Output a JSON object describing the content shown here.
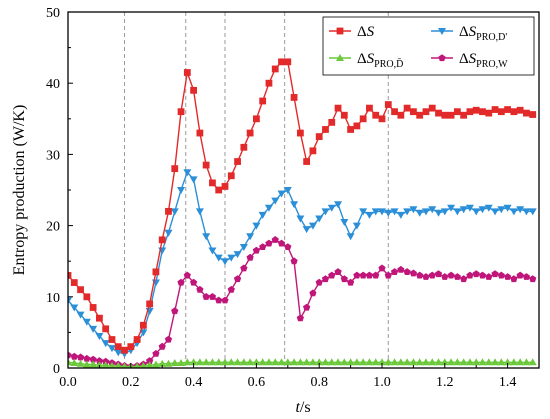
{
  "chart_data": {
    "type": "line",
    "xlabel_italic": "t",
    "xlabel_unit": "/s",
    "ylabel": "Entropy production (W/K)",
    "xlim": [
      0.0,
      1.5
    ],
    "ylim": [
      0,
      50
    ],
    "x_ticks": [
      "0.0",
      "0.2",
      "0.4",
      "0.6",
      "0.8",
      "1.0",
      "1.2",
      "1.4"
    ],
    "x_tick_values": [
      0.0,
      0.2,
      0.4,
      0.6,
      0.8,
      1.0,
      1.2,
      1.4
    ],
    "y_ticks": [
      "0",
      "10",
      "20",
      "30",
      "40",
      "50"
    ],
    "y_tick_values": [
      0,
      10,
      20,
      30,
      40,
      50
    ],
    "vertical_reference_lines_x": [
      0.18,
      0.375,
      0.5,
      0.69,
      1.02
    ],
    "legend_position": "top-right",
    "series": [
      {
        "name": "ΔS",
        "legend_main": "Δ",
        "legend_italic": "S",
        "legend_sub": "",
        "color": "#e32a2a",
        "marker": "square",
        "x": [
          0.0,
          0.02,
          0.04,
          0.06,
          0.08,
          0.1,
          0.12,
          0.14,
          0.16,
          0.18,
          0.2,
          0.22,
          0.24,
          0.26,
          0.28,
          0.3,
          0.32,
          0.34,
          0.36,
          0.38,
          0.4,
          0.42,
          0.44,
          0.46,
          0.48,
          0.5,
          0.52,
          0.54,
          0.56,
          0.58,
          0.6,
          0.62,
          0.64,
          0.66,
          0.68,
          0.7,
          0.72,
          0.74,
          0.76,
          0.78,
          0.8,
          0.82,
          0.84,
          0.86,
          0.88,
          0.9,
          0.92,
          0.94,
          0.96,
          0.98,
          1.0,
          1.02,
          1.04,
          1.06,
          1.08,
          1.1,
          1.12,
          1.14,
          1.16,
          1.18,
          1.2,
          1.22,
          1.24,
          1.26,
          1.28,
          1.3,
          1.32,
          1.34,
          1.36,
          1.38,
          1.4,
          1.42,
          1.44,
          1.46,
          1.48
        ],
        "values": [
          13.0,
          12.0,
          11.0,
          10.0,
          8.5,
          7.0,
          5.5,
          4.0,
          3.0,
          2.5,
          3.0,
          4.0,
          6.0,
          9.0,
          13.5,
          18.0,
          22.0,
          28.0,
          36.0,
          41.5,
          39.0,
          33.0,
          28.5,
          26.0,
          25.0,
          25.5,
          27.0,
          29.0,
          31.0,
          33.0,
          35.0,
          37.5,
          40.0,
          42.0,
          43.0,
          43.0,
          38.0,
          33.0,
          29.0,
          30.5,
          32.5,
          33.5,
          34.5,
          36.5,
          35.5,
          33.5,
          34.0,
          35.0,
          36.5,
          35.5,
          35.0,
          37.0,
          36.0,
          35.5,
          36.5,
          36.0,
          35.5,
          36.0,
          36.5,
          35.8,
          35.5,
          35.5,
          36.0,
          35.5,
          36.0,
          36.2,
          36.0,
          35.8,
          36.3,
          36.0,
          36.3,
          36.0,
          36.2,
          35.8,
          35.6
        ]
      },
      {
        "name": "ΔSPRO,D'",
        "legend_main": "Δ",
        "legend_italic": "S",
        "legend_sub": "PRO,D'",
        "color": "#2b8fd8",
        "marker": "triangle-down",
        "x": [
          0.0,
          0.02,
          0.04,
          0.06,
          0.08,
          0.1,
          0.12,
          0.14,
          0.16,
          0.18,
          0.2,
          0.22,
          0.24,
          0.26,
          0.28,
          0.3,
          0.32,
          0.34,
          0.36,
          0.38,
          0.4,
          0.42,
          0.44,
          0.46,
          0.48,
          0.5,
          0.52,
          0.54,
          0.56,
          0.58,
          0.6,
          0.62,
          0.64,
          0.66,
          0.68,
          0.7,
          0.72,
          0.74,
          0.76,
          0.78,
          0.8,
          0.82,
          0.84,
          0.86,
          0.88,
          0.9,
          0.92,
          0.94,
          0.96,
          0.98,
          1.0,
          1.02,
          1.04,
          1.06,
          1.08,
          1.1,
          1.12,
          1.14,
          1.16,
          1.18,
          1.2,
          1.22,
          1.24,
          1.26,
          1.28,
          1.3,
          1.32,
          1.34,
          1.36,
          1.38,
          1.4,
          1.42,
          1.44,
          1.46,
          1.48
        ],
        "values": [
          9.5,
          8.5,
          7.5,
          6.5,
          5.5,
          4.5,
          3.5,
          2.8,
          2.2,
          2.0,
          2.5,
          3.5,
          5.0,
          8.0,
          12.0,
          16.5,
          19.0,
          22.0,
          25.0,
          27.5,
          26.5,
          22.0,
          18.5,
          16.5,
          15.5,
          15.0,
          15.5,
          16.0,
          17.0,
          18.5,
          20.0,
          21.5,
          22.5,
          23.5,
          24.5,
          25.0,
          23.0,
          21.0,
          19.5,
          20.0,
          21.0,
          22.0,
          22.5,
          23.0,
          20.5,
          18.5,
          20.0,
          22.0,
          21.5,
          22.0,
          22.0,
          21.8,
          22.0,
          21.5,
          22.0,
          22.3,
          21.8,
          22.0,
          22.3,
          21.8,
          22.0,
          22.5,
          22.0,
          22.3,
          22.5,
          22.0,
          22.3,
          22.5,
          22.0,
          22.3,
          22.5,
          22.0,
          22.3,
          22.0,
          22.0
        ]
      },
      {
        "name": "ΔSPRO,D̄",
        "legend_main": "Δ",
        "legend_italic": "S",
        "legend_sub": "PRO,D̄",
        "color": "#6cc93c",
        "marker": "triangle-up",
        "x": [
          0.0,
          0.02,
          0.04,
          0.06,
          0.08,
          0.1,
          0.12,
          0.14,
          0.16,
          0.18,
          0.2,
          0.22,
          0.24,
          0.26,
          0.28,
          0.3,
          0.32,
          0.34,
          0.36,
          0.38,
          0.4,
          0.42,
          0.44,
          0.46,
          0.48,
          0.5,
          0.52,
          0.54,
          0.56,
          0.58,
          0.6,
          0.62,
          0.64,
          0.66,
          0.68,
          0.7,
          0.72,
          0.74,
          0.76,
          0.78,
          0.8,
          0.82,
          0.84,
          0.86,
          0.88,
          0.9,
          0.92,
          0.94,
          0.96,
          0.98,
          1.0,
          1.02,
          1.04,
          1.06,
          1.08,
          1.1,
          1.12,
          1.14,
          1.16,
          1.18,
          1.2,
          1.22,
          1.24,
          1.26,
          1.28,
          1.3,
          1.32,
          1.34,
          1.36,
          1.38,
          1.4,
          1.42,
          1.44,
          1.46,
          1.48
        ],
        "values": [
          0.8,
          0.7,
          0.6,
          0.5,
          0.5,
          0.4,
          0.4,
          0.3,
          0.3,
          0.2,
          0.2,
          0.2,
          0.3,
          0.4,
          0.5,
          0.6,
          0.6,
          0.7,
          0.7,
          0.8,
          0.8,
          0.8,
          0.8,
          0.8,
          0.8,
          0.8,
          0.8,
          0.8,
          0.8,
          0.8,
          0.8,
          0.8,
          0.8,
          0.8,
          0.8,
          0.8,
          0.8,
          0.8,
          0.8,
          0.8,
          0.8,
          0.8,
          0.8,
          0.8,
          0.8,
          0.8,
          0.8,
          0.8,
          0.8,
          0.8,
          0.8,
          0.8,
          0.8,
          0.8,
          0.8,
          0.8,
          0.8,
          0.8,
          0.8,
          0.8,
          0.8,
          0.8,
          0.8,
          0.8,
          0.8,
          0.8,
          0.8,
          0.8,
          0.8,
          0.8,
          0.8,
          0.8,
          0.8,
          0.8,
          0.8
        ]
      },
      {
        "name": "ΔSPRO,W",
        "legend_main": "Δ",
        "legend_italic": "S",
        "legend_sub": "PRO,W",
        "color": "#c0167a",
        "marker": "pentagon",
        "x": [
          0.0,
          0.02,
          0.04,
          0.06,
          0.08,
          0.1,
          0.12,
          0.14,
          0.16,
          0.18,
          0.2,
          0.22,
          0.24,
          0.26,
          0.28,
          0.3,
          0.32,
          0.34,
          0.36,
          0.38,
          0.4,
          0.42,
          0.44,
          0.46,
          0.48,
          0.5,
          0.52,
          0.54,
          0.56,
          0.58,
          0.6,
          0.62,
          0.64,
          0.66,
          0.68,
          0.7,
          0.72,
          0.74,
          0.76,
          0.78,
          0.8,
          0.82,
          0.84,
          0.86,
          0.88,
          0.9,
          0.92,
          0.94,
          0.96,
          0.98,
          1.0,
          1.02,
          1.04,
          1.06,
          1.08,
          1.1,
          1.12,
          1.14,
          1.16,
          1.18,
          1.2,
          1.22,
          1.24,
          1.26,
          1.28,
          1.3,
          1.32,
          1.34,
          1.36,
          1.38,
          1.4,
          1.42,
          1.44,
          1.46,
          1.48
        ],
        "values": [
          1.8,
          1.6,
          1.5,
          1.3,
          1.2,
          1.0,
          0.9,
          0.7,
          0.5,
          0.3,
          0.2,
          0.3,
          0.5,
          1.0,
          2.0,
          3.0,
          4.0,
          8.0,
          12.0,
          13.0,
          12.0,
          11.0,
          10.0,
          10.0,
          9.5,
          9.5,
          11.0,
          12.5,
          14.0,
          15.5,
          16.5,
          17.0,
          17.5,
          18.0,
          17.5,
          17.0,
          15.0,
          7.0,
          8.5,
          10.5,
          12.0,
          12.5,
          13.0,
          13.5,
          12.5,
          12.0,
          13.0,
          13.0,
          13.0,
          13.0,
          14.0,
          13.0,
          13.5,
          13.8,
          13.5,
          13.3,
          13.0,
          12.8,
          13.0,
          13.2,
          12.8,
          13.0,
          12.8,
          12.5,
          13.0,
          13.2,
          13.0,
          12.8,
          13.2,
          13.0,
          12.8,
          12.5,
          13.0,
          12.8,
          12.5
        ]
      }
    ]
  }
}
